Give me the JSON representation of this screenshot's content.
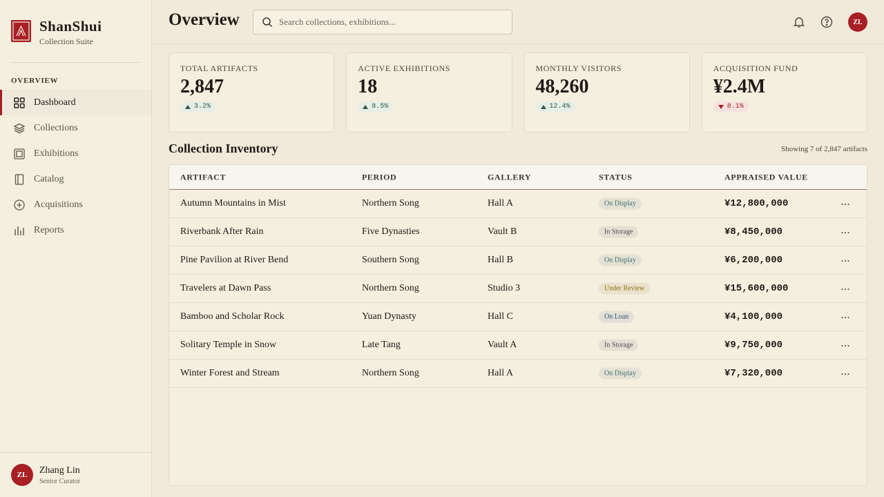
{
  "sidebar": {
    "brand": {
      "name": "ShanShui",
      "subtitle": "Collection Suite"
    },
    "section": "OVERVIEW",
    "nav": [
      {
        "label": "Dashboard",
        "active": true
      },
      {
        "label": "Collections",
        "active": false
      },
      {
        "label": "Exhibitions",
        "active": false
      },
      {
        "label": "Catalog",
        "active": false
      },
      {
        "label": "Acquisitions",
        "active": false
      },
      {
        "label": "Reports",
        "active": false
      }
    ],
    "user": {
      "initials": "ZL",
      "name": "Zhang Lin",
      "role": "Senior Curator"
    }
  },
  "header": {
    "title": "Overview",
    "search_placeholder": "Search collections, exhibitions...",
    "avatar": "ZL"
  },
  "stats": [
    {
      "label": "TOTAL ARTIFACTS",
      "value": "2,847",
      "change": "3.2%",
      "trend": "up"
    },
    {
      "label": "ACTIVE EXHIBITIONS",
      "value": "18",
      "change": "8.5%",
      "trend": "up"
    },
    {
      "label": "MONTHLY VISITORS",
      "value": "48,260",
      "change": "12.4%",
      "trend": "up"
    },
    {
      "label": "ACQUISITION FUND",
      "value": "¥2.4M",
      "change": "8.1%",
      "trend": "down"
    }
  ],
  "inventory": {
    "title": "Collection Inventory",
    "summary": "Showing 7 of 2,847 artifacts",
    "columns": [
      "ARTIFACT",
      "PERIOD",
      "GALLERY",
      "STATUS",
      "APPRAISED VALUE"
    ],
    "rows": [
      {
        "artifact": "Autumn Mountains in Mist",
        "period": "Northern Song",
        "gallery": "Hall A",
        "status": "On Display",
        "status_color": "#3f6b6b",
        "value": "¥12,800,000"
      },
      {
        "artifact": "Riverbank After Rain",
        "period": "Five Dynasties",
        "gallery": "Vault B",
        "status": "In Storage",
        "status_color": "#4a4a52",
        "value": "¥8,450,000"
      },
      {
        "artifact": "Pine Pavilion at River Bend",
        "period": "Southern Song",
        "gallery": "Hall B",
        "status": "On Display",
        "status_color": "#3f6b6b",
        "value": "¥6,200,000"
      },
      {
        "artifact": "Travelers at Dawn Pass",
        "period": "Northern Song",
        "gallery": "Studio 3",
        "status": "Under Review",
        "status_color": "#8a6a10",
        "value": "¥15,600,000"
      },
      {
        "artifact": "Bamboo and Scholar Rock",
        "period": "Yuan Dynasty",
        "gallery": "Hall C",
        "status": "On Loan",
        "status_color": "#2f4f74",
        "value": "¥4,100,000"
      },
      {
        "artifact": "Solitary Temple in Snow",
        "period": "Late Tang",
        "gallery": "Vault A",
        "status": "In Storage",
        "status_color": "#4a4a52",
        "value": "¥9,750,000"
      },
      {
        "artifact": "Winter Forest and Stream",
        "period": "Northern Song",
        "gallery": "Hall A",
        "status": "On Display",
        "status_color": "#3f6b6b",
        "value": "¥7,320,000"
      }
    ]
  }
}
